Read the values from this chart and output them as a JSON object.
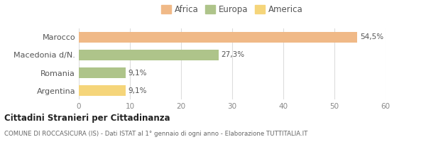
{
  "categories": [
    "Marocco",
    "Macedonia d/N.",
    "Romania",
    "Argentina"
  ],
  "values": [
    54.5,
    27.3,
    9.1,
    9.1
  ],
  "labels": [
    "54,5%",
    "27,3%",
    "9,1%",
    "9,1%"
  ],
  "colors": [
    "#f0b987",
    "#aec48a",
    "#aec48a",
    "#f5d57a"
  ],
  "legend_labels": [
    "Africa",
    "Europa",
    "America"
  ],
  "legend_colors": [
    "#f0b987",
    "#aec48a",
    "#f5d57a"
  ],
  "xlim": [
    0,
    60
  ],
  "xticks": [
    0,
    10,
    20,
    30,
    40,
    50,
    60
  ],
  "title": "Cittadini Stranieri per Cittadinanza",
  "subtitle": "COMUNE DI ROCCASICURA (IS) - Dati ISTAT al 1° gennaio di ogni anno - Elaborazione TUTTITALIA.IT",
  "background_color": "#ffffff",
  "grid_color": "#dddddd"
}
